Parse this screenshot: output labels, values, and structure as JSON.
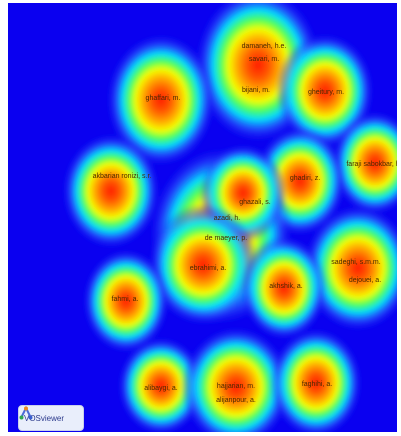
{
  "app": {
    "name": "VOSviewer"
  },
  "map": {
    "type": "author density visualization",
    "background_color": "#0a00f0",
    "clusters": [
      {
        "id": "c-damaneh",
        "labels": [
          "damaneh, h.e.",
          "savari, m.",
          "bijani, m."
        ]
      },
      {
        "id": "c-ghaffari",
        "labels": [
          "ghaffari, m."
        ]
      },
      {
        "id": "c-gheitury",
        "labels": [
          "gheitury, m."
        ]
      },
      {
        "id": "c-faraji",
        "labels": [
          "faraji sabokbar, h."
        ]
      },
      {
        "id": "c-akbarian",
        "labels": [
          "akbarian ronizi, s.r."
        ]
      },
      {
        "id": "c-ghadiri",
        "labels": [
          "ghadiri, z."
        ]
      },
      {
        "id": "c-main",
        "labels": [
          "ghazali, s.",
          "azadi, h.",
          "de maeyer, p.",
          "ebrahimi, a."
        ]
      },
      {
        "id": "c-sadeghi",
        "labels": [
          "sadeghi, s.m.m.",
          "dejouei, a."
        ]
      },
      {
        "id": "c-akhshik",
        "labels": [
          "akhshik, a."
        ]
      },
      {
        "id": "c-fahmi",
        "labels": [
          "fahmi, a."
        ]
      },
      {
        "id": "c-alibaygi",
        "labels": [
          "alibaygi, a."
        ]
      },
      {
        "id": "c-hajjarian",
        "labels": [
          "hajjarian, m.",
          "alijanpour, a."
        ]
      },
      {
        "id": "c-faghihi",
        "labels": [
          "faghihi, a."
        ]
      }
    ]
  }
}
